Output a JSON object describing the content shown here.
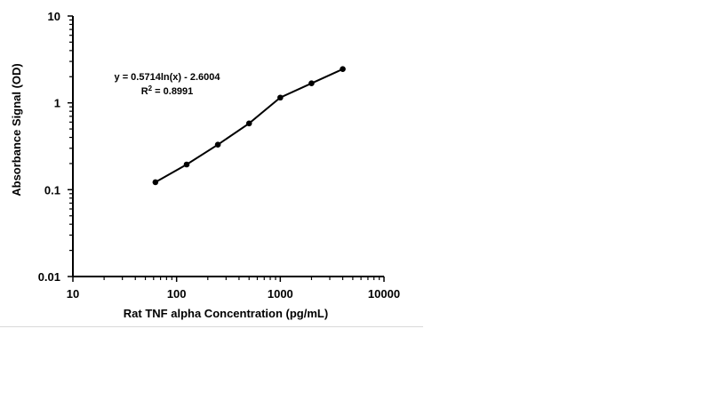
{
  "chart_data": {
    "type": "scatter",
    "title": "",
    "xlabel": "Rat TNF alpha Concentration (pg/mL)",
    "ylabel": "Absorbance Signal (OD)",
    "xscale": "log",
    "yscale": "log",
    "xlim": [
      10,
      10000
    ],
    "ylim": [
      0.01,
      10
    ],
    "xticks": [
      "10",
      "100",
      "1000",
      "10000"
    ],
    "yticks": [
      "0.01",
      "0.1",
      "1",
      "10"
    ],
    "grid": false,
    "legend": "none",
    "line_color": "#000000",
    "series": [
      {
        "x": [
          62.5,
          125,
          250,
          500,
          1000,
          2000,
          4000
        ],
        "y": [
          0.122,
          0.195,
          0.33,
          0.58,
          1.15,
          1.68,
          2.45
        ]
      }
    ],
    "annotations": {
      "equation": "y = 0.5714ln(x) - 2.6004",
      "r2_prefix": "R",
      "r2_sup": "2",
      "r2_suffix": " = 0.8991"
    }
  }
}
